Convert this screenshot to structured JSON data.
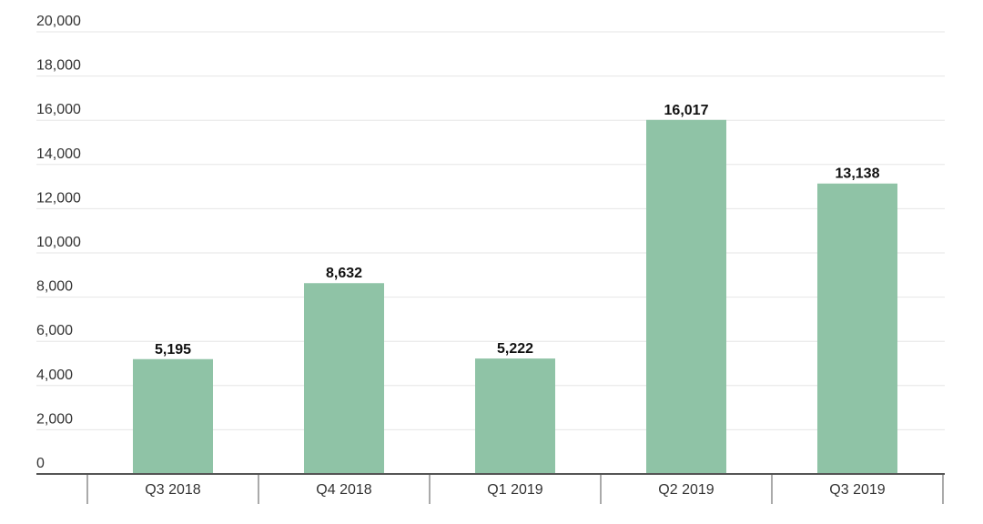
{
  "chart_data": {
    "type": "bar",
    "categories": [
      "Q3 2018",
      "Q4 2018",
      "Q1 2019",
      "Q2 2019",
      "Q3 2019"
    ],
    "values": [
      5195,
      8632,
      5222,
      16017,
      13138
    ],
    "data_labels": [
      "5,195",
      "8,632",
      "5,222",
      "16,017",
      "13,138"
    ],
    "ylim": [
      0,
      20000
    ],
    "yticks": [
      0,
      2000,
      4000,
      6000,
      8000,
      10000,
      12000,
      14000,
      16000,
      18000,
      20000
    ],
    "ytick_labels": [
      "0",
      "2,000",
      "4,000",
      "6,000",
      "8,000",
      "10,000",
      "12,000",
      "14,000",
      "16,000",
      "18,000",
      "20,000"
    ],
    "title": "",
    "xlabel": "",
    "ylabel": "",
    "grid": true,
    "legend": "none",
    "colors": {
      "bar": "#8fc3a6",
      "grid": "#e6e6e6",
      "axis": "#555555",
      "text": "#333333"
    }
  }
}
